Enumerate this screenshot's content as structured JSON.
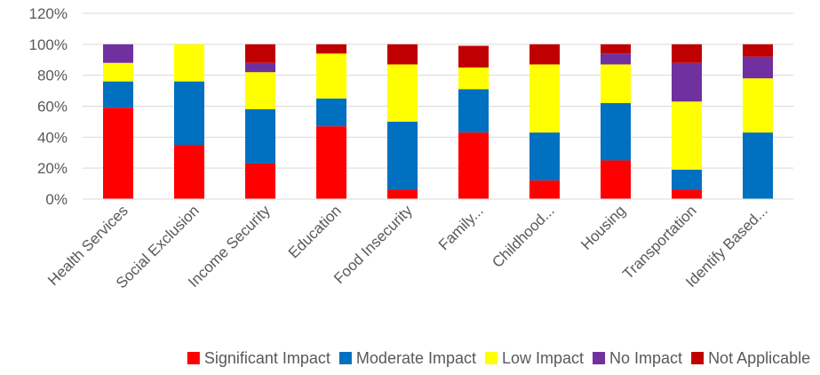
{
  "chart_data": {
    "type": "bar",
    "stacked": true,
    "categories": [
      "Health Services",
      "Social Exclusion",
      "Income Security",
      "Education",
      "Food Insecurity",
      "Family...",
      "Childhood...",
      "Housing",
      "Transportation",
      "Identify Based..."
    ],
    "series": [
      {
        "name": "Significant Impact",
        "color": "#ff0000",
        "values": [
          59,
          35,
          23,
          47,
          6,
          43,
          12,
          25,
          6,
          0
        ]
      },
      {
        "name": "Moderate Impact",
        "color": "#0070c0",
        "values": [
          17,
          41,
          35,
          18,
          44,
          28,
          31,
          37,
          13,
          43
        ]
      },
      {
        "name": "Low Impact",
        "color": "#ffff00",
        "values": [
          12,
          24,
          24,
          29,
          37,
          14,
          44,
          25,
          44,
          35
        ]
      },
      {
        "name": "No Impact",
        "color": "#7030a0",
        "values": [
          12,
          0,
          6,
          0,
          0,
          0,
          0,
          7,
          25,
          14
        ]
      },
      {
        "name": "Not Applicable",
        "color": "#c00000",
        "values": [
          0,
          0,
          12,
          6,
          13,
          14,
          13,
          6,
          12,
          8
        ]
      }
    ],
    "y_ticks": [
      "0%",
      "20%",
      "40%",
      "60%",
      "80%",
      "100%",
      "120%"
    ],
    "ylim": [
      0,
      120
    ],
    "grid": true,
    "legend_position": "bottom",
    "title": "",
    "xlabel": "",
    "ylabel": ""
  }
}
